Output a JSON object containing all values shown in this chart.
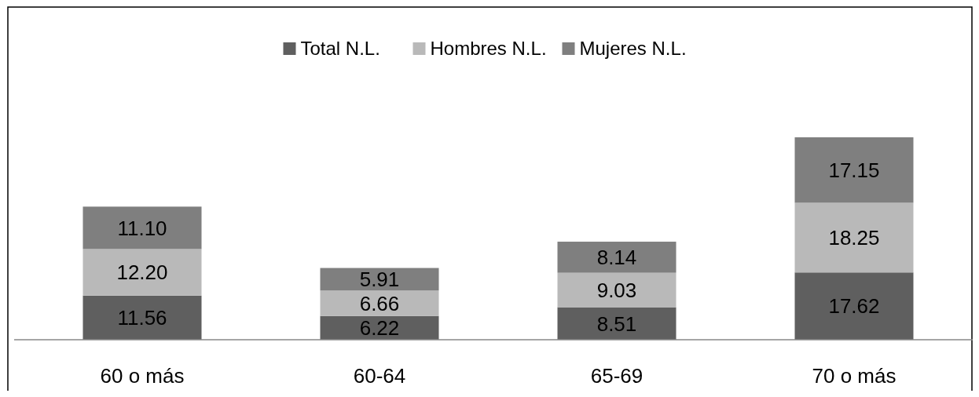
{
  "chart_data": {
    "type": "bar",
    "stacked": true,
    "legend": "top",
    "categories": [
      "60 o más",
      "60-64",
      "65-69",
      "70 o más"
    ],
    "series": [
      {
        "name": "Total N.L.",
        "color": "#5f5f5f",
        "values": [
          11.56,
          6.22,
          8.51,
          17.62
        ],
        "value_labels": [
          "11.56",
          "6.22",
          "8.51",
          "17.62"
        ]
      },
      {
        "name": "Hombres N.L.",
        "color": "#b9b9b9",
        "values": [
          12.2,
          6.66,
          9.03,
          18.25
        ],
        "value_labels": [
          "12.20",
          "6.66",
          "9.03",
          "18.25"
        ]
      },
      {
        "name": "Mujeres N.L.",
        "color": "#7f7f7f",
        "values": [
          11.1,
          5.91,
          8.14,
          17.15
        ],
        "value_labels": [
          "11.10",
          "5.91",
          "8.14",
          "17.15"
        ]
      }
    ]
  }
}
